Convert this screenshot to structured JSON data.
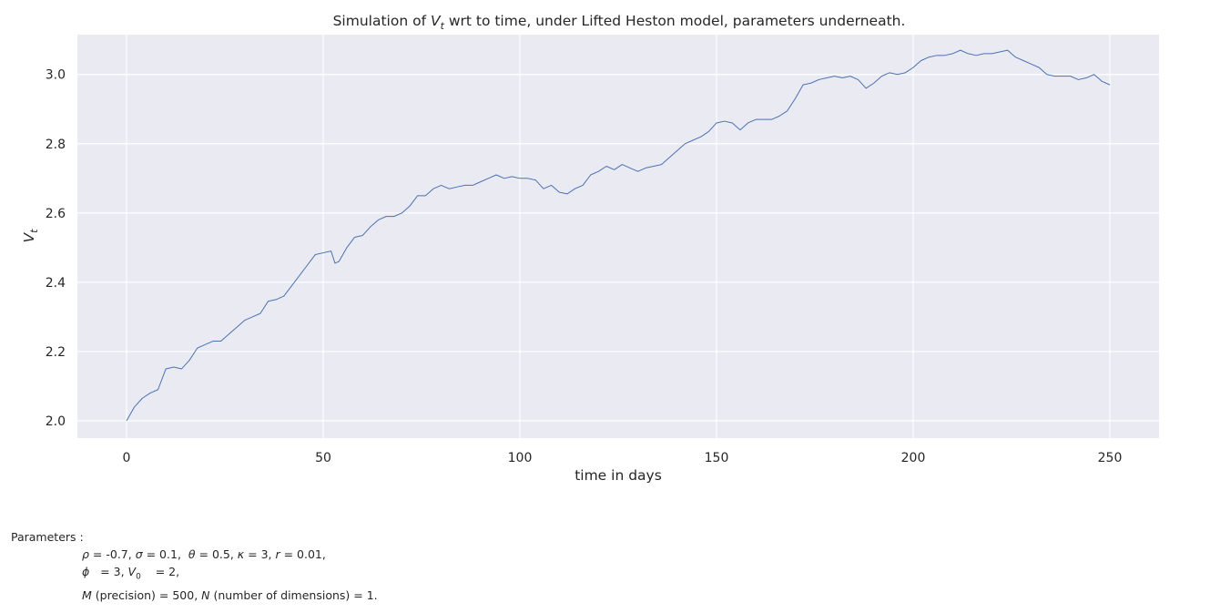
{
  "chart_data": {
    "type": "line",
    "title": "Simulation of V_t wrt to time, under Lifted Heston model, parameters underneath.",
    "title_parts": {
      "pre": "Simulation of ",
      "var": "V",
      "sub": "t",
      "post": " wrt to time, under Lifted Heston model, parameters underneath."
    },
    "xlabel": "time in days",
    "ylabel": {
      "var": "V",
      "sub": "t"
    },
    "xlim": [
      -12.5,
      262.5
    ],
    "ylim": [
      1.95,
      3.115
    ],
    "xticks": [
      0,
      50,
      100,
      150,
      200,
      250
    ],
    "yticks": [
      2.0,
      2.2,
      2.4,
      2.6,
      2.8,
      3.0
    ],
    "ytick_labels": [
      "2.0",
      "2.2",
      "2.4",
      "2.6",
      "2.8",
      "3.0"
    ],
    "grid": true,
    "background": "#eaeaf2",
    "line_color": "#4c72b0",
    "series": [
      {
        "x": [
          0,
          2,
          4,
          6,
          8,
          10,
          12,
          14,
          16,
          18,
          20,
          22,
          24,
          26,
          28,
          30,
          32,
          34,
          36,
          38,
          40,
          42,
          44,
          46,
          48,
          50,
          52,
          53,
          54,
          56,
          58,
          60,
          62,
          64,
          66,
          68,
          70,
          72,
          74,
          76,
          78,
          80,
          82,
          84,
          86,
          88,
          90,
          92,
          94,
          96,
          98,
          100,
          102,
          104,
          106,
          108,
          110,
          112,
          114,
          116,
          118,
          120,
          122,
          124,
          126,
          128,
          130,
          132,
          134,
          136,
          138,
          140,
          142,
          144,
          146,
          148,
          150,
          152,
          154,
          156,
          158,
          160,
          162,
          164,
          166,
          168,
          170,
          172,
          174,
          176,
          178,
          180,
          182,
          184,
          186,
          188,
          190,
          192,
          194,
          196,
          198,
          200,
          202,
          204,
          206,
          208,
          210,
          212,
          214,
          216,
          218,
          220,
          222,
          224,
          226,
          228,
          230,
          232,
          234,
          236,
          238,
          240,
          242,
          244,
          246,
          248,
          250
        ],
        "y": [
          2.0,
          2.04,
          2.065,
          2.08,
          2.09,
          2.15,
          2.155,
          2.15,
          2.175,
          2.21,
          2.22,
          2.23,
          2.23,
          2.25,
          2.27,
          2.29,
          2.3,
          2.31,
          2.345,
          2.35,
          2.36,
          2.39,
          2.42,
          2.45,
          2.48,
          2.485,
          2.49,
          2.455,
          2.46,
          2.5,
          2.53,
          2.535,
          2.56,
          2.58,
          2.59,
          2.59,
          2.6,
          2.62,
          2.65,
          2.65,
          2.67,
          2.68,
          2.67,
          2.675,
          2.68,
          2.68,
          2.69,
          2.7,
          2.71,
          2.7,
          2.705,
          2.7,
          2.7,
          2.695,
          2.67,
          2.68,
          2.66,
          2.655,
          2.67,
          2.68,
          2.71,
          2.72,
          2.735,
          2.725,
          2.74,
          2.73,
          2.72,
          2.73,
          2.735,
          2.74,
          2.76,
          2.78,
          2.8,
          2.81,
          2.82,
          2.835,
          2.86,
          2.865,
          2.86,
          2.84,
          2.86,
          2.87,
          2.87,
          2.87,
          2.88,
          2.895,
          2.93,
          2.97,
          2.975,
          2.985,
          2.99,
          2.995,
          2.99,
          2.995,
          2.985,
          2.96,
          2.975,
          2.995,
          3.005,
          3.0,
          3.005,
          3.02,
          3.04,
          3.05,
          3.055,
          3.055,
          3.06,
          3.07,
          3.06,
          3.055,
          3.06,
          3.06,
          3.065,
          3.07,
          3.05,
          3.04,
          3.03,
          3.02,
          3.0,
          2.995,
          2.995,
          2.995,
          2.985,
          2.99,
          3.0,
          2.98,
          2.97
        ]
      }
    ]
  },
  "parameters": {
    "header": "Parameters :",
    "line1": [
      {
        "var": "ρ",
        "text": " = -0.7, "
      },
      {
        "var": "σ",
        "text": " = 0.1,  "
      },
      {
        "var": "θ",
        "text": " = 0.5, "
      },
      {
        "var": "κ",
        "text": " = 3, "
      },
      {
        "var": "r",
        "text": " = 0.01,"
      }
    ],
    "line2": [
      {
        "var": "ϕ",
        "text": "   = 3, "
      },
      {
        "var": "V",
        "sub": "0",
        "text": "    = 2,"
      }
    ],
    "line3": [
      {
        "var": "M",
        "text": " (precision) = 500, "
      },
      {
        "var": "N",
        "text": " (number of dimensions) = 1."
      }
    ]
  }
}
